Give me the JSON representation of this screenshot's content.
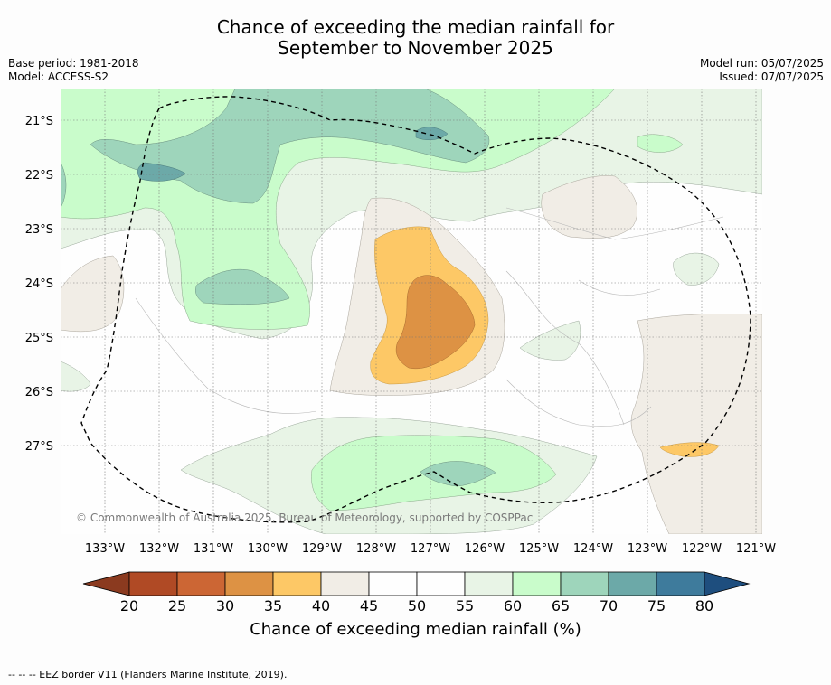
{
  "title_line1": "Chance of exceeding the median rainfall for",
  "title_line2": "September to November 2025",
  "base_period": "Base period: 1981-2018",
  "model": "Model: ACCESS-S2",
  "model_run": "Model run: 05/07/2025",
  "issued": "Issued: 07/07/2025",
  "copyright": "© Commonwealth of Australia 2025, Bureau of Meteorology, supported by COSPPac",
  "lat_labels": [
    "21°S",
    "22°S",
    "23°S",
    "24°S",
    "25°S",
    "26°S",
    "27°S"
  ],
  "lon_labels": [
    "133°W",
    "132°W",
    "131°W",
    "130°W",
    "129°W",
    "128°W",
    "127°W",
    "126°W",
    "125°W",
    "124°W",
    "123°W",
    "122°W",
    "121°W"
  ],
  "colorbar": {
    "ticks": [
      "20",
      "25",
      "30",
      "35",
      "40",
      "45",
      "50",
      "55",
      "60",
      "65",
      "70",
      "75",
      "80"
    ],
    "colors": [
      "#b04a25",
      "#cc6634",
      "#dd9244",
      "#fdc866",
      "#f1ede6",
      "#fefefe",
      "#fefefe",
      "#e8f4e6",
      "#c9fccb",
      "#9ed5bb",
      "#6ca9a8",
      "#3e7b9c"
    ],
    "under_color": "#8b3a1f",
    "over_color": "#1e4e7e",
    "label": "Chance of exceeding median rainfall (%)"
  },
  "footnote": "--  --  -- EEZ border V11 (Flanders Marine Institute, 2019)."
}
